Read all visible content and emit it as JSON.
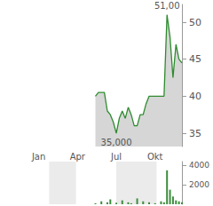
{
  "chart_data": {
    "type": "line",
    "categories": [
      null,
      null,
      null,
      null,
      null,
      null,
      null,
      null,
      null,
      null,
      "Jan",
      null,
      null,
      null,
      null,
      null,
      null,
      null,
      null,
      null,
      null,
      null,
      null,
      "Apr",
      null,
      null,
      null,
      null,
      null,
      null,
      null,
      null,
      null,
      null,
      null,
      null,
      "Jul",
      null,
      null,
      null,
      null,
      null,
      null,
      null,
      null,
      null,
      null,
      null,
      null,
      "Okt",
      null,
      null,
      null,
      null,
      null,
      null,
      null,
      null,
      null
    ],
    "series": [
      {
        "type": "line",
        "color": "#2e8b2e",
        "values": [
          null,
          null,
          null,
          null,
          null,
          null,
          null,
          null,
          null,
          null,
          null,
          null,
          null,
          null,
          null,
          null,
          null,
          null,
          null,
          null,
          null,
          null,
          null,
          null,
          null,
          null,
          null,
          null,
          null,
          40,
          40.5,
          40.5,
          40.5,
          38,
          37.5,
          36.5,
          35,
          37,
          38,
          37,
          38.5,
          37.5,
          36,
          36,
          37.5,
          37.5,
          39,
          40,
          40,
          40,
          40,
          40,
          40,
          51,
          48,
          42.5,
          47,
          45,
          44.5
        ]
      },
      {
        "type": "bar",
        "color": "#3c8d3c",
        "axis": "y2",
        "values": [
          null,
          null,
          null,
          null,
          null,
          null,
          null,
          null,
          null,
          null,
          null,
          null,
          null,
          null,
          null,
          null,
          null,
          null,
          null,
          null,
          null,
          null,
          null,
          null,
          null,
          null,
          null,
          null,
          null,
          100,
          0,
          300,
          0,
          200,
          500,
          0,
          150,
          0,
          400,
          0,
          200,
          100,
          0,
          600,
          0,
          300,
          0,
          200,
          0,
          100,
          0,
          300,
          200,
          3500,
          1500,
          800,
          400,
          300,
          200
        ]
      }
    ],
    "ylim": [
      33.2,
      52.4
    ],
    "yticks": [
      35,
      40,
      45,
      50
    ],
    "y2lim": [
      0,
      4400
    ],
    "y2ticks": [
      2000,
      4000
    ],
    "annotations": {
      "max": "51,00",
      "min": "35,000"
    },
    "grid": false
  }
}
